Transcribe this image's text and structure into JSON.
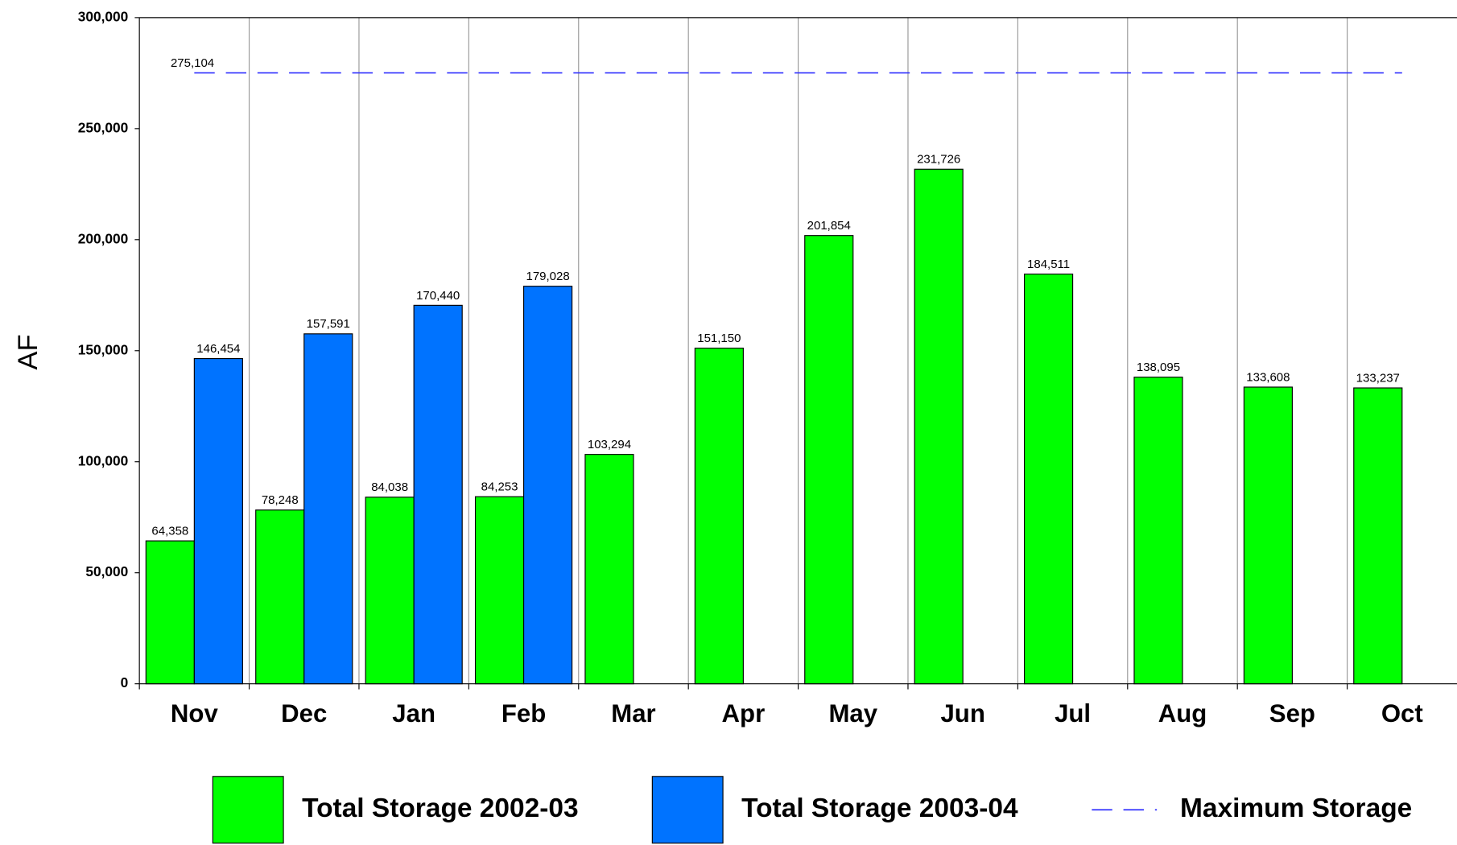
{
  "chart_data": {
    "type": "bar",
    "y_label": "AF",
    "categories": [
      "Nov",
      "Dec",
      "Jan",
      "Feb",
      "Mar",
      "Apr",
      "May",
      "Jun",
      "Jul",
      "Aug",
      "Sep",
      "Oct"
    ],
    "series": [
      {
        "name": "Total Storage 2002-03",
        "color": "#00ff00",
        "values": [
          64358,
          78248,
          84038,
          84253,
          103294,
          151150,
          201854,
          231726,
          184511,
          138095,
          133608,
          133237
        ],
        "value_labels": [
          "64,358",
          "78,248",
          "84,038",
          "84,253",
          "103,294",
          "151,150",
          "201,854",
          "231,726",
          "184,511",
          "138,095",
          "133,608",
          "133,237"
        ]
      },
      {
        "name": "Total Storage 2003-04",
        "color": "#0073ff",
        "values": [
          146454,
          157591,
          170440,
          179028,
          null,
          null,
          null,
          null,
          null,
          null,
          null,
          null
        ],
        "value_labels": [
          "146,454",
          "157,591",
          "170,440",
          "179,028",
          null,
          null,
          null,
          null,
          null,
          null,
          null,
          null
        ]
      }
    ],
    "max_line": {
      "name": "Maximum Storage",
      "value": 275104,
      "value_label": "275,104",
      "color": "#3333ff"
    },
    "ylim": [
      0,
      300000
    ],
    "yticks": [
      0,
      {
        "value": 50000,
        "label": "50,000"
      },
      {
        "value": 100000,
        "label": "100,000"
      },
      {
        "value": 150000,
        "label": "150,000"
      },
      {
        "value": 200000,
        "label": "200,000"
      },
      {
        "value": 250000,
        "label": "250,000"
      },
      {
        "value": 300000,
        "label": "300,000"
      }
    ],
    "grid": true
  }
}
